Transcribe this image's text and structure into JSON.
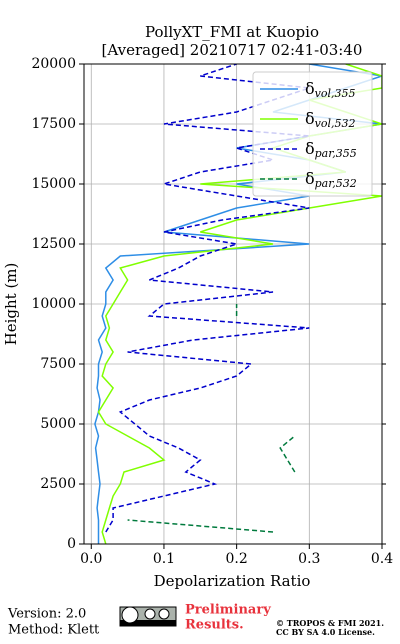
{
  "chart_data": {
    "type": "line",
    "orientation": "vertical",
    "title": "PollyXT_FMI at Kuopio",
    "subtitle": "[Averaged] 20210717 02:41-03:40",
    "xlabel": "Depolarization Ratio",
    "ylabel": "Height (m)",
    "xlim": [
      -0.01,
      0.4
    ],
    "xticks": [
      {
        "value": 0,
        "label": "0.0"
      },
      0.1,
      0.2,
      0.3,
      0.4
    ],
    "ylim": [
      0,
      20000
    ],
    "yticks": [
      0,
      2500,
      5000,
      7500,
      10000,
      12500,
      15000,
      17500,
      20000
    ],
    "grid": true,
    "legend": "upper right",
    "y": [
      0,
      500,
      1000,
      1500,
      2000,
      2500,
      3000,
      3500,
      4000,
      4500,
      5000,
      5500,
      6000,
      6500,
      7000,
      7500,
      8000,
      8500,
      9000,
      9500,
      10000,
      10500,
      11000,
      11500,
      12000,
      12500,
      13000,
      13500,
      14000,
      14500,
      15000,
      15500,
      16000,
      16500,
      17000,
      17500,
      18000,
      18500,
      19000,
      19500,
      20000
    ],
    "series": [
      {
        "name": "δvol,355",
        "color": "#2e8ee6",
        "dash": false,
        "values": [
          0.01,
          0.01,
          0.01,
          0.008,
          0.01,
          0.012,
          0.01,
          0.008,
          0.006,
          0.01,
          0.005,
          0.01,
          0.012,
          0.008,
          0.01,
          0.01,
          0.015,
          0.01,
          0.02,
          0.015,
          0.02,
          0.02,
          0.03,
          0.02,
          0.04,
          0.3,
          0.1,
          0.15,
          0.2,
          0.3,
          0.2,
          0.35,
          0.3,
          0.2,
          0.3,
          0.4,
          0.25,
          0.3,
          0.35,
          0.4,
          0.3
        ]
      },
      {
        "name": "δvol,532",
        "color": "#80ff00",
        "dash": false,
        "values": [
          0.02,
          0.015,
          0.02,
          0.025,
          0.03,
          0.04,
          0.045,
          0.1,
          0.08,
          0.05,
          0.02,
          0.01,
          0.02,
          0.03,
          0.015,
          0.02,
          0.03,
          0.02,
          0.025,
          0.02,
          0.03,
          0.04,
          0.05,
          0.04,
          0.1,
          0.25,
          0.15,
          0.2,
          0.3,
          0.4,
          0.15,
          0.35,
          0.3,
          0.25,
          0.3,
          0.4,
          0.35,
          0.3,
          0.4,
          0.4,
          0.35
        ]
      },
      {
        "name": "δpar,355",
        "color": "#0000cc",
        "dash": true,
        "values": [
          null,
          0.02,
          0.03,
          0.03,
          0.1,
          0.17,
          0.13,
          0.15,
          0.12,
          0.08,
          0.06,
          0.04,
          0.08,
          0.15,
          0.2,
          0.22,
          0.05,
          0.14,
          0.3,
          0.08,
          0.1,
          0.25,
          0.08,
          0.12,
          0.15,
          0.2,
          0.1,
          0.18,
          0.3,
          0.2,
          0.1,
          0.15,
          0.25,
          0.2,
          0.3,
          0.1,
          0.2,
          0.25,
          0.3,
          0.15,
          0.2
        ]
      },
      {
        "name": "δpar,532",
        "color": "#007a3d",
        "dash": true,
        "values": [
          null,
          0.25,
          0.05,
          null,
          null,
          null,
          0.28,
          0.27,
          0.26,
          0.28,
          null,
          null,
          null,
          null,
          null,
          null,
          null,
          null,
          null,
          0.2,
          0.2,
          null,
          null,
          null,
          null,
          null,
          null,
          null,
          null,
          null,
          null,
          null,
          null,
          null,
          null,
          null,
          null,
          null,
          null,
          null,
          null
        ]
      }
    ],
    "footer": {
      "version": "Version: 2.0",
      "method": "Method: Klett",
      "preliminary": [
        "Preliminary",
        "Results."
      ],
      "copyright": [
        "© TROPOS & FMI 2021.",
        "CC BY SA 4.0 License."
      ]
    }
  }
}
